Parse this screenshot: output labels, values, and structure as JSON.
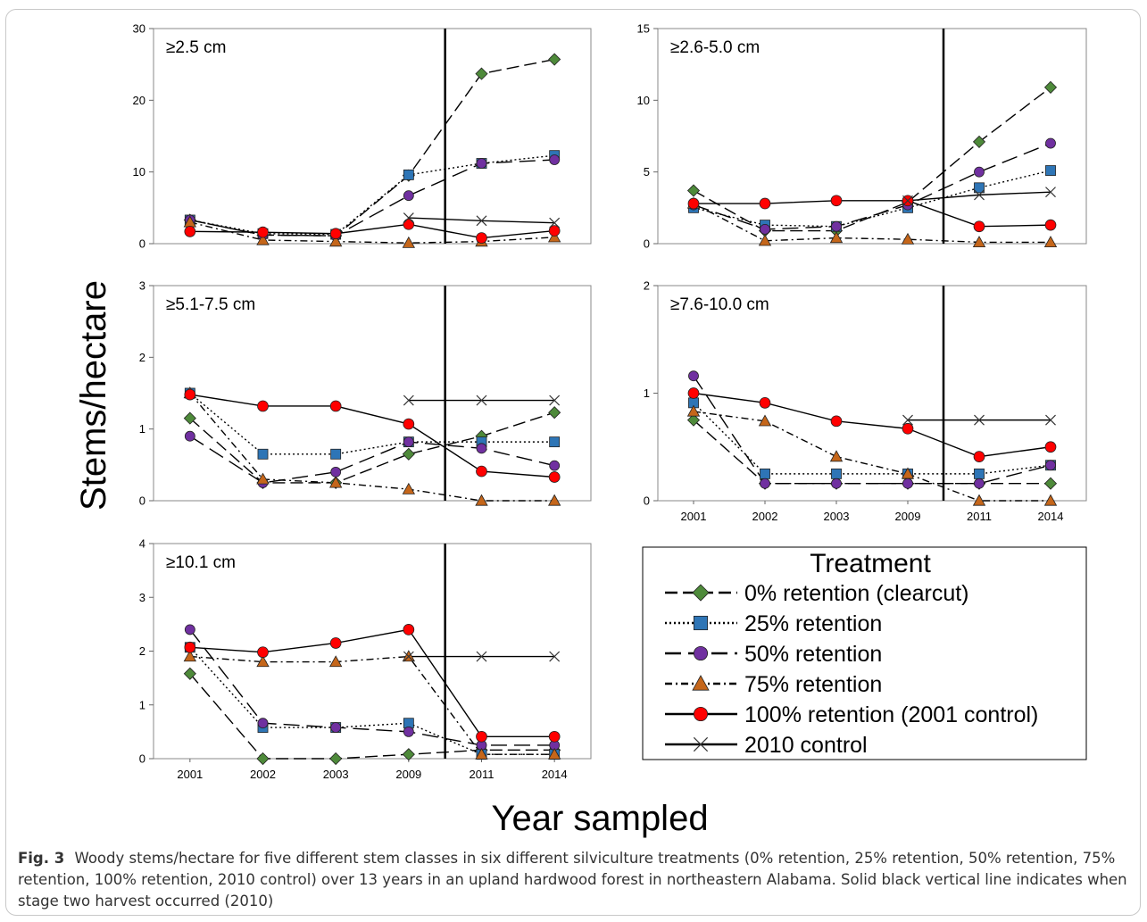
{
  "figure": {
    "caption_label": "Fig. 3",
    "caption_text": "Woody stems/hectare for five different stem classes in six different silviculture treatments (0% retention, 25% retention, 50% retention, 75% retention, 100% retention, 2010 control) over 13 years in an upland hardwood forest in northeastern Alabama. Solid black vertical line indicates when stage two harvest occurred (2010)",
    "ylabel": "Stems/hectare",
    "xlabel": "Year sampled",
    "legend_title": "Treatment",
    "harvest_line_between": [
      "2009",
      "2011"
    ]
  },
  "series_style": [
    {
      "name": "0% retention (clearcut)",
      "marker": "diamond",
      "color": "#4e8a3a",
      "dash": "long-dash"
    },
    {
      "name": "25% retention",
      "marker": "square",
      "color": "#2e75b6",
      "dash": "dotted"
    },
    {
      "name": "50% retention",
      "marker": "circle",
      "color": "#7030a0",
      "dash": "long-dash-gap"
    },
    {
      "name": "75% retention",
      "marker": "triangle",
      "color": "#c5661a",
      "dash": "dash-dot"
    },
    {
      "name": "100% retention (2001 control)",
      "marker": "circle",
      "color": "#ff0000",
      "dash": "solid"
    },
    {
      "name": "2010 control",
      "marker": "x",
      "color": "#333333",
      "dash": "solid"
    }
  ],
  "chart_data": [
    {
      "type": "line",
      "title": "≥2.5 cm",
      "categories": [
        "2001",
        "2002",
        "2003",
        "2009",
        "2011",
        "2014"
      ],
      "ylim": [
        0,
        30
      ],
      "yticks": [
        0,
        10,
        20,
        30
      ],
      "show_xticks": false,
      "series": [
        {
          "name": "0% retention (clearcut)",
          "values": [
            3.3,
            1.2,
            1.1,
            9.5,
            23.7,
            25.7
          ]
        },
        {
          "name": "25% retention",
          "values": [
            3.3,
            1.4,
            1.3,
            9.6,
            11.2,
            12.3
          ]
        },
        {
          "name": "50% retention",
          "values": [
            3.3,
            1.2,
            1.1,
            6.7,
            11.2,
            11.7
          ]
        },
        {
          "name": "75% retention",
          "values": [
            3.0,
            0.5,
            0.3,
            0.1,
            0.3,
            0.9
          ]
        },
        {
          "name": "100% retention (2001 control)",
          "values": [
            1.7,
            1.6,
            1.4,
            2.7,
            0.8,
            1.8
          ]
        },
        {
          "name": "2010 control",
          "values": [
            null,
            null,
            null,
            3.6,
            3.2,
            2.9
          ]
        }
      ]
    },
    {
      "type": "line",
      "title": "≥2.6-5.0 cm",
      "categories": [
        "2001",
        "2002",
        "2003",
        "2009",
        "2011",
        "2014"
      ],
      "ylim": [
        0,
        15
      ],
      "yticks": [
        0,
        5,
        10,
        15
      ],
      "show_xticks": false,
      "series": [
        {
          "name": "0% retention (clearcut)",
          "values": [
            3.7,
            0.9,
            0.9,
            2.9,
            7.1,
            10.9
          ]
        },
        {
          "name": "25% retention",
          "values": [
            2.5,
            1.3,
            1.2,
            2.5,
            3.9,
            5.1
          ]
        },
        {
          "name": "50% retention",
          "values": [
            2.7,
            1.0,
            1.2,
            2.7,
            5.0,
            7.0
          ]
        },
        {
          "name": "75% retention",
          "values": [
            2.8,
            0.2,
            0.4,
            0.3,
            0.1,
            0.1
          ]
        },
        {
          "name": "100% retention (2001 control)",
          "values": [
            2.8,
            2.8,
            3.0,
            3.0,
            1.2,
            1.3
          ]
        },
        {
          "name": "2010 control",
          "values": [
            null,
            null,
            null,
            3.0,
            3.4,
            3.6
          ]
        }
      ]
    },
    {
      "type": "line",
      "title": "≥5.1-7.5 cm",
      "categories": [
        "2001",
        "2002",
        "2003",
        "2009",
        "2011",
        "2014"
      ],
      "ylim": [
        0,
        3
      ],
      "yticks": [
        0,
        1,
        2,
        3
      ],
      "show_xticks": false,
      "series": [
        {
          "name": "0% retention (clearcut)",
          "values": [
            1.15,
            0.25,
            0.25,
            0.65,
            0.9,
            1.23
          ]
        },
        {
          "name": "25% retention",
          "values": [
            1.5,
            0.65,
            0.65,
            0.82,
            0.82,
            0.82
          ]
        },
        {
          "name": "50% retention",
          "values": [
            0.9,
            0.25,
            0.4,
            0.82,
            0.73,
            0.49
          ]
        },
        {
          "name": "75% retention",
          "values": [
            1.5,
            0.3,
            0.25,
            0.16,
            0.0,
            0.0
          ]
        },
        {
          "name": "100% retention (2001 control)",
          "values": [
            1.48,
            1.32,
            1.32,
            1.07,
            0.41,
            0.33
          ]
        },
        {
          "name": "2010 control",
          "values": [
            null,
            null,
            null,
            1.4,
            1.4,
            1.4
          ]
        }
      ]
    },
    {
      "type": "line",
      "title": "≥7.6-10.0 cm",
      "categories": [
        "2001",
        "2002",
        "2003",
        "2009",
        "2011",
        "2014"
      ],
      "ylim": [
        0,
        2
      ],
      "yticks": [
        0,
        1,
        2
      ],
      "show_xticks": true,
      "series": [
        {
          "name": "0% retention (clearcut)",
          "values": [
            0.75,
            0.16,
            0.16,
            0.16,
            0.16,
            0.16
          ]
        },
        {
          "name": "25% retention",
          "values": [
            0.91,
            0.25,
            0.25,
            0.25,
            0.25,
            0.33
          ]
        },
        {
          "name": "50% retention",
          "values": [
            1.16,
            0.16,
            0.16,
            0.16,
            0.16,
            0.33
          ]
        },
        {
          "name": "75% retention",
          "values": [
            0.83,
            0.74,
            0.41,
            0.25,
            0.0,
            0.0
          ]
        },
        {
          "name": "100% retention (2001 control)",
          "values": [
            1.0,
            0.91,
            0.74,
            0.67,
            0.41,
            0.5
          ]
        },
        {
          "name": "2010 control",
          "values": [
            null,
            null,
            null,
            0.75,
            0.75,
            0.75
          ]
        }
      ]
    },
    {
      "type": "line",
      "title": "≥10.1 cm",
      "categories": [
        "2001",
        "2002",
        "2003",
        "2009",
        "2011",
        "2014"
      ],
      "ylim": [
        0,
        4
      ],
      "yticks": [
        0,
        1,
        2,
        3,
        4
      ],
      "show_xticks": true,
      "series": [
        {
          "name": "0% retention (clearcut)",
          "values": [
            1.58,
            0.0,
            0.0,
            0.08,
            0.16,
            0.16
          ]
        },
        {
          "name": "25% retention",
          "values": [
            2.07,
            0.58,
            0.58,
            0.66,
            0.08,
            0.08
          ]
        },
        {
          "name": "50% retention",
          "values": [
            2.4,
            0.66,
            0.58,
            0.5,
            0.25,
            0.25
          ]
        },
        {
          "name": "75% retention",
          "values": [
            1.9,
            1.8,
            1.8,
            1.9,
            0.08,
            0.08
          ]
        },
        {
          "name": "100% retention (2001 control)",
          "values": [
            2.07,
            1.98,
            2.15,
            2.4,
            0.41,
            0.41
          ]
        },
        {
          "name": "2010 control",
          "values": [
            null,
            null,
            null,
            1.9,
            1.9,
            1.9
          ]
        }
      ]
    }
  ]
}
